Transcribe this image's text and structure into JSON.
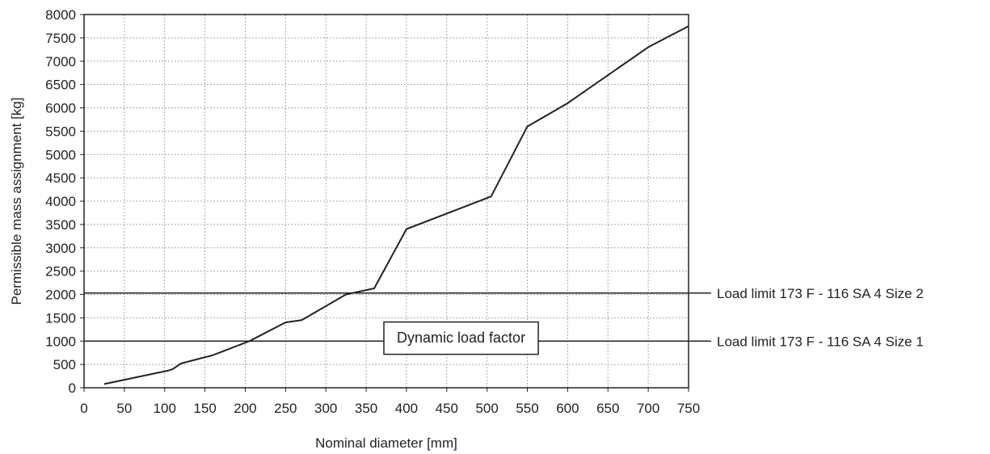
{
  "chart_data": {
    "type": "line",
    "xlabel": "Nominal diameter [mm]",
    "ylabel": "Permissible mass assignment [kg]",
    "xlim": [
      0,
      750
    ],
    "ylim": [
      0,
      8000
    ],
    "x_ticks": [
      0,
      50,
      100,
      150,
      200,
      250,
      300,
      350,
      400,
      450,
      500,
      550,
      600,
      650,
      700,
      750
    ],
    "y_ticks": [
      0,
      500,
      1000,
      1500,
      2000,
      2500,
      3000,
      3500,
      4000,
      4500,
      5000,
      5500,
      6000,
      6500,
      7000,
      7500,
      8000
    ],
    "grid": true,
    "series": [
      {
        "x": [
          25,
          105,
          110,
          120,
          160,
          205,
          250,
          270,
          325,
          360,
          400,
          505,
          550,
          600,
          700,
          750
        ],
        "y": [
          80,
          370,
          400,
          520,
          700,
          1000,
          1400,
          1450,
          2000,
          2130,
          3400,
          4100,
          5600,
          6100,
          7300,
          7750
        ]
      }
    ],
    "reference_lines": [
      {
        "y": 2030,
        "label": "Load limit 173 F - 116 SA 4 Size 2"
      },
      {
        "y": 1000,
        "label": "Load limit 173 F - 116 SA 4 Size 1"
      }
    ],
    "annotations": [
      {
        "text": "Dynamic load factor",
        "x": 375,
        "y": 1150
      }
    ]
  }
}
